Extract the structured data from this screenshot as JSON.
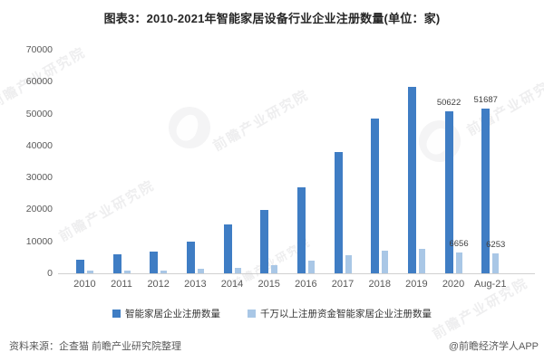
{
  "title": "图表3：2010-2021年智能家居设备行业企业注册数量(单位：家)",
  "chart_data": {
    "type": "bar",
    "title": "图表3：2010-2021年智能家居设备行业企业注册数量(单位：家)",
    "categories": [
      "2010",
      "2011",
      "2012",
      "2013",
      "2014",
      "2015",
      "2016",
      "2017",
      "2018",
      "2019",
      "2020",
      "Aug-21"
    ],
    "series": [
      {
        "name": "智能家居企业注册数量",
        "color": "#3F7DC4",
        "values": [
          4300,
          6100,
          6900,
          9800,
          15200,
          19800,
          27000,
          37900,
          48500,
          58300,
          50622,
          51687
        ],
        "value_labels": [
          "",
          "",
          "",
          "",
          "",
          "",
          "",
          "",
          "",
          "",
          "50622",
          "51687"
        ]
      },
      {
        "name": "千万以上注册资金智能家居企业注册数量",
        "color": "#A9C7E6",
        "values": [
          800,
          800,
          950,
          1400,
          1800,
          2500,
          4000,
          5700,
          7000,
          7600,
          6656,
          6253
        ],
        "value_labels": [
          "",
          "",
          "",
          "",
          "",
          "",
          "",
          "",
          "",
          "",
          "6656",
          "6253"
        ]
      }
    ],
    "ylim": [
      0,
      70000
    ],
    "yticks": [
      70000,
      60000,
      50000,
      40000,
      30000,
      20000,
      10000,
      0
    ],
    "xlabel": "",
    "ylabel": "",
    "grid": false,
    "legend_position": "bottom"
  },
  "watermark": {
    "text": "前瞻产业研究院"
  },
  "footer": {
    "source": "资料来源：企查猫 前瞻产业研究院整理",
    "credit": "@前瞻经济学人APP"
  }
}
